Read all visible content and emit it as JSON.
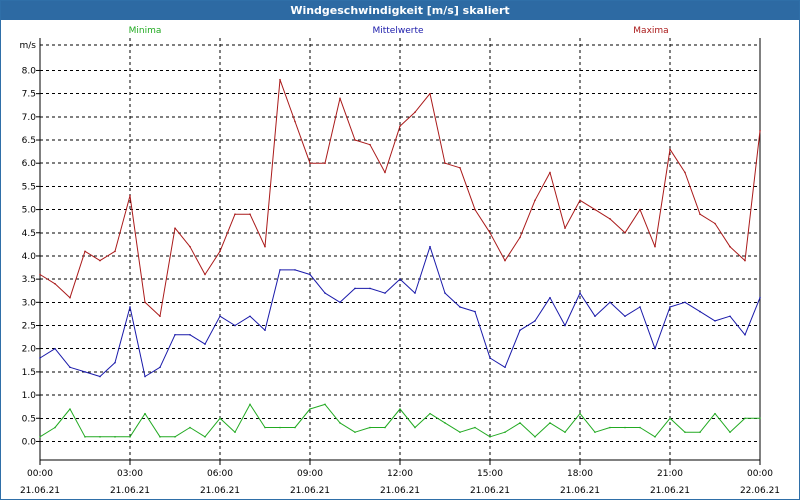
{
  "window": {
    "title": "Windgeschwindigkeit [m/s] skaliert"
  },
  "chart_data": {
    "type": "line",
    "title": "Windgeschwindigkeit [m/s] skaliert",
    "ylabel": "m/s",
    "xlabel": "",
    "ylim": [
      -0.4,
      8.7
    ],
    "xlim": [
      0,
      24
    ],
    "grid": true,
    "legend_placement": "top",
    "yticks": [
      "0.0",
      "0.5",
      "1.0",
      "1.5",
      "2.0",
      "2.5",
      "3.0",
      "3.5",
      "4.0",
      "4.5",
      "5.0",
      "5.5",
      "6.0",
      "6.5",
      "7.0",
      "7.5",
      "8.0"
    ],
    "xticks": [
      {
        "time": "00:00",
        "date": "21.06.21"
      },
      {
        "time": "03:00",
        "date": "21.06.21"
      },
      {
        "time": "06:00",
        "date": "21.06.21"
      },
      {
        "time": "09:00",
        "date": "21.06.21"
      },
      {
        "time": "12:00",
        "date": "21.06.21"
      },
      {
        "time": "15:00",
        "date": "21.06.21"
      },
      {
        "time": "18:00",
        "date": "21.06.21"
      },
      {
        "time": "21:00",
        "date": "21.06.21"
      },
      {
        "time": "00:00",
        "date": "22.06.21"
      }
    ],
    "series": [
      {
        "name": "Minima",
        "color": "#22aa22",
        "x": [
          0.0,
          0.5,
          1.0,
          1.5,
          2.0,
          2.5,
          3.0,
          3.5,
          4.0,
          4.5,
          5.0,
          5.5,
          6.0,
          6.5,
          7.0,
          7.5,
          8.0,
          8.5,
          9.0,
          9.5,
          10.0,
          10.5,
          11.0,
          11.5,
          12.0,
          12.5,
          13.0,
          13.5,
          14.0,
          14.5,
          15.0,
          15.5,
          16.0,
          16.5,
          17.0,
          17.5,
          18.0,
          18.5,
          19.0,
          19.5,
          20.0,
          20.5,
          21.0,
          21.5,
          22.0,
          22.5,
          23.0,
          23.5,
          24.0
        ],
        "values": [
          0.1,
          0.3,
          0.7,
          0.1,
          0.1,
          0.1,
          0.1,
          0.6,
          0.1,
          0.1,
          0.3,
          0.1,
          0.5,
          0.2,
          0.8,
          0.3,
          0.3,
          0.3,
          0.7,
          0.8,
          0.4,
          0.2,
          0.3,
          0.3,
          0.7,
          0.3,
          0.6,
          0.4,
          0.2,
          0.3,
          0.1,
          0.2,
          0.4,
          0.1,
          0.4,
          0.2,
          0.6,
          0.2,
          0.3,
          0.3,
          0.3,
          0.1,
          0.5,
          0.2,
          0.2,
          0.6,
          0.2,
          0.5,
          0.5
        ]
      },
      {
        "name": "Mittelwerte",
        "color": "#1a1aaa",
        "x": [
          0.0,
          0.5,
          1.0,
          1.5,
          2.0,
          2.5,
          3.0,
          3.5,
          4.0,
          4.5,
          5.0,
          5.5,
          6.0,
          6.5,
          7.0,
          7.5,
          8.0,
          8.5,
          9.0,
          9.5,
          10.0,
          10.5,
          11.0,
          11.5,
          12.0,
          12.5,
          13.0,
          13.5,
          14.0,
          14.5,
          15.0,
          15.5,
          16.0,
          16.5,
          17.0,
          17.5,
          18.0,
          18.5,
          19.0,
          19.5,
          20.0,
          20.5,
          21.0,
          21.5,
          22.0,
          22.5,
          23.0,
          23.5,
          24.0
        ],
        "values": [
          1.8,
          2.0,
          1.6,
          1.5,
          1.4,
          1.7,
          2.9,
          1.4,
          1.6,
          2.3,
          2.3,
          2.1,
          2.7,
          2.5,
          2.7,
          2.4,
          3.7,
          3.7,
          3.6,
          3.2,
          3.0,
          3.3,
          3.3,
          3.2,
          3.5,
          3.2,
          4.2,
          3.2,
          2.9,
          2.8,
          1.8,
          1.6,
          2.4,
          2.6,
          3.1,
          2.5,
          3.2,
          2.7,
          3.0,
          2.7,
          2.9,
          2.0,
          2.9,
          3.0,
          2.8,
          2.6,
          2.7,
          2.3,
          3.1
        ]
      },
      {
        "name": "Maxima",
        "color": "#aa1a1a",
        "x": [
          0.0,
          0.5,
          1.0,
          1.5,
          2.0,
          2.5,
          3.0,
          3.5,
          4.0,
          4.5,
          5.0,
          5.5,
          6.0,
          6.5,
          7.0,
          7.5,
          8.0,
          8.5,
          9.0,
          9.5,
          10.0,
          10.5,
          11.0,
          11.5,
          12.0,
          12.5,
          13.0,
          13.5,
          14.0,
          14.5,
          15.0,
          15.5,
          16.0,
          16.5,
          17.0,
          17.5,
          18.0,
          18.5,
          19.0,
          19.5,
          20.0,
          20.5,
          21.0,
          21.5,
          22.0,
          22.5,
          23.0,
          23.5,
          24.0
        ],
        "values": [
          3.6,
          3.4,
          3.1,
          4.1,
          3.9,
          4.1,
          5.3,
          3.0,
          2.7,
          4.6,
          4.2,
          3.6,
          4.1,
          4.9,
          4.9,
          4.2,
          7.8,
          6.9,
          6.0,
          6.0,
          7.4,
          6.5,
          6.4,
          5.8,
          6.8,
          7.1,
          7.5,
          6.0,
          5.9,
          5.0,
          4.5,
          3.9,
          4.4,
          5.2,
          5.8,
          4.6,
          5.2,
          5.0,
          4.8,
          4.5,
          5.0,
          4.2,
          6.3,
          5.8,
          4.9,
          4.7,
          4.2,
          3.9,
          6.7
        ]
      }
    ]
  }
}
